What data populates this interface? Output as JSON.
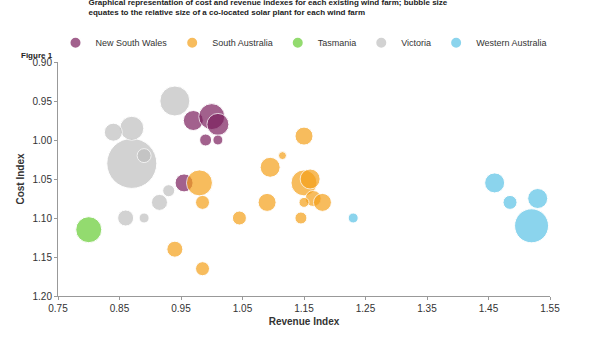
{
  "chart_data": {
    "type": "scatter",
    "annotations": [
      "Figure 1"
    ],
    "title": "Graphical representation of cost and revenue indexes for each existing wind farm; bubble size equates to the relative size of a co-located solar plant for each wind farm",
    "x_label": "Revenue Index",
    "y_label": "Cost Index",
    "xlim": [
      0.75,
      1.55
    ],
    "xticks": [
      0.75,
      0.85,
      0.95,
      1.05,
      1.15,
      1.25,
      1.35,
      1.45,
      1.55
    ],
    "ylim": [
      1.2,
      0.9
    ],
    "yticks": [
      {
        "value": 0.9,
        "label": "0.90"
      },
      0.95,
      {
        "value": 1.0,
        "label": "1.00"
      },
      1.05,
      {
        "value": 1.1,
        "label": "1.10"
      },
      1.15,
      {
        "value": 1.2,
        "label": "1.20"
      }
    ],
    "grid": false,
    "legend": "top",
    "marker": "circle",
    "series": [
      {
        "name": "New South Wales",
        "color": "#7b1f5e",
        "x": [
          0.97,
          1.0,
          1.01,
          0.99,
          1.01,
          0.955
        ],
        "values": [
          0.975,
          0.97,
          0.98,
          1.0,
          1.0,
          1.055
        ],
        "sizes": [
          20,
          26,
          22,
          12,
          10,
          18
        ]
      },
      {
        "name": "South Australia",
        "color": "#f5a01a",
        "x": [
          0.98,
          0.985,
          0.94,
          0.985,
          1.045,
          1.09,
          1.095,
          1.115,
          1.15,
          1.15,
          1.16,
          1.165,
          1.15,
          1.145,
          1.18
        ],
        "values": [
          1.055,
          1.08,
          1.14,
          1.165,
          1.1,
          1.08,
          1.035,
          1.02,
          0.995,
          1.055,
          1.05,
          1.075,
          1.08,
          1.1,
          1.08
        ],
        "sizes": [
          26,
          14,
          16,
          14,
          14,
          18,
          20,
          8,
          18,
          26,
          20,
          16,
          10,
          12,
          18
        ]
      },
      {
        "name": "Tasmania",
        "color": "#66cc33",
        "x": [
          0.8
        ],
        "values": [
          1.115
        ],
        "sizes": [
          26
        ]
      },
      {
        "name": "Victoria",
        "color": "#bfbfbf",
        "x": [
          0.87,
          0.94,
          0.87,
          0.84,
          0.89,
          0.86,
          0.89,
          0.915,
          0.93
        ],
        "values": [
          1.03,
          0.95,
          0.985,
          0.99,
          1.02,
          1.1,
          1.1,
          1.08,
          1.065
        ],
        "sizes": [
          50,
          30,
          24,
          18,
          14,
          16,
          10,
          16,
          12
        ]
      },
      {
        "name": "Western Australia",
        "color": "#5bc3e6",
        "x": [
          1.46,
          1.485,
          1.53,
          1.52,
          1.23
        ],
        "values": [
          1.055,
          1.08,
          1.075,
          1.11,
          1.1
        ],
        "sizes": [
          20,
          14,
          20,
          34,
          10
        ]
      }
    ]
  }
}
